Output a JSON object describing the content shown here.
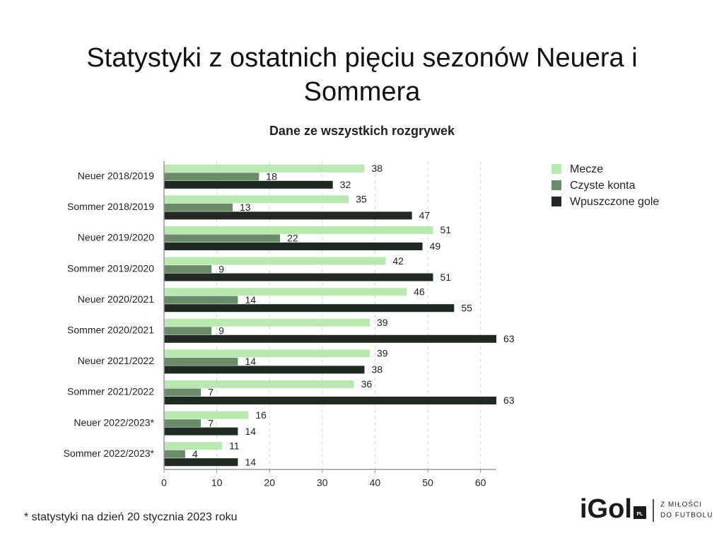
{
  "chart_data": {
    "type": "hbar",
    "title": "Statystyki z ostatnich pięciu sezonów Neuera i Sommera",
    "subtitle": "Dane ze wszystkich rozgrywek",
    "categories": [
      "Neuer 2018/2019",
      "Sommer 2018/2019",
      "Neuer 2019/2020",
      "Sommer 2019/2020",
      "Neuer 2020/2021",
      "Sommer 2020/2021",
      "Neuer 2021/2022",
      "Sommer 2021/2022",
      "Neuer 2022/2023*",
      "Sommer 2022/2023*"
    ],
    "series": [
      {
        "name": "Mecze",
        "color": "#b9e9b1",
        "values": [
          38,
          35,
          51,
          42,
          46,
          39,
          39,
          36,
          16,
          11
        ]
      },
      {
        "name": "Czyste konta",
        "color": "#6b8c68",
        "values": [
          18,
          13,
          22,
          9,
          14,
          9,
          14,
          7,
          7,
          4
        ]
      },
      {
        "name": "Wpuszczone gole",
        "color": "#222924",
        "values": [
          32,
          47,
          49,
          51,
          55,
          63,
          38,
          63,
          14,
          14
        ]
      }
    ],
    "xlim": [
      0,
      63
    ],
    "xticks": [
      0,
      10,
      20,
      30,
      40,
      50,
      60
    ],
    "grid": true,
    "legend": "right",
    "footnote": "* statystyki na dzień 20 stycznia 2023 roku",
    "logo": "iGol",
    "logo_badge": "PL",
    "tagline": [
      "Z MIŁOŚCI",
      "DO FUTBOLU"
    ]
  }
}
